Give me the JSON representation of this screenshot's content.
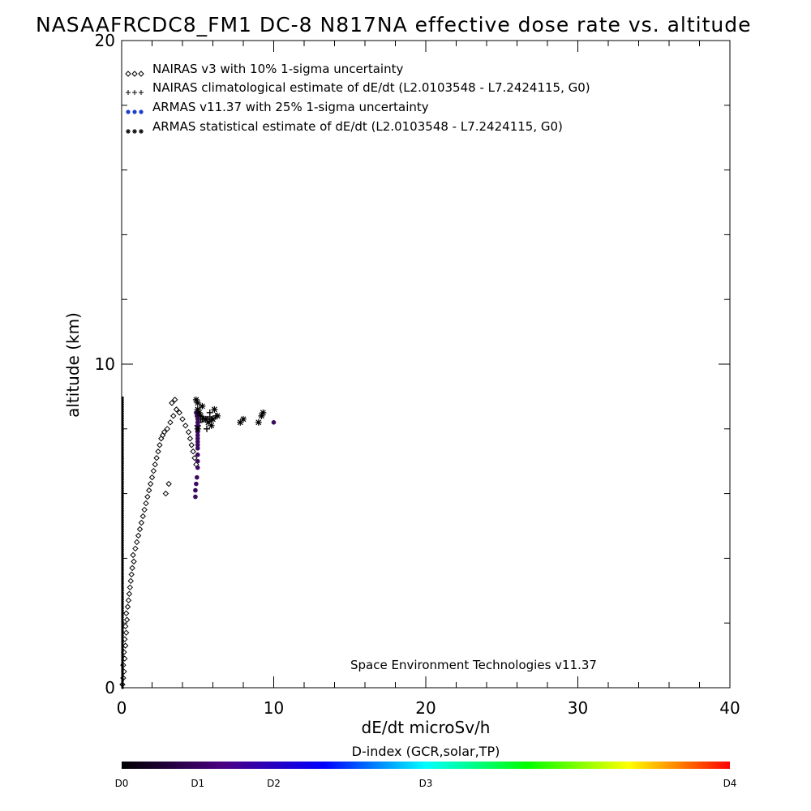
{
  "chart_data": {
    "type": "scatter",
    "title": "NASAAFRCDC8_FM1 DC-8   N817NA effective dose rate vs. altitude",
    "xlabel": "dE/dt microSv/h",
    "ylabel": "altitude (km)",
    "xlim": [
      0,
      40
    ],
    "ylim": [
      0,
      20
    ],
    "x_ticks": [
      "0",
      "10",
      "20",
      "30",
      "40"
    ],
    "y_ticks": [
      "0",
      "10",
      "20"
    ],
    "legend_position": "top-left",
    "legend": [
      {
        "marker": "diamond",
        "label": "NAIRAS v3 with 10% 1-sigma uncertainty"
      },
      {
        "marker": "plus",
        "label": "NAIRAS climatological estimate of dE/dt (L2.0103548 - L7.2424115, G0)"
      },
      {
        "marker": "dot",
        "label": "ARMAS v11.37 with 25% 1-sigma uncertainty"
      },
      {
        "marker": "asterisk",
        "label": "ARMAS statistical estimate of dE/dt (L2.0103548 - L7.2424115, G0)"
      }
    ],
    "annotation": "Space Environment Technologies v11.37",
    "colorbar": {
      "title": "D-index (GCR,solar,TP)",
      "labels": [
        "D0",
        "D1",
        "D2",
        "D3",
        "D4"
      ],
      "colors": [
        "#000000",
        "#4b0082",
        "#0000ff",
        "#00ffff",
        "#00ff00",
        "#ffff00",
        "#ff0000"
      ]
    },
    "series": [
      {
        "name": "NAIRAS v3 with 10% 1-sigma uncertainty",
        "marker": "diamond",
        "color": "#000000",
        "x": [
          0.05,
          0.1,
          0.15,
          0.1,
          0.2,
          0.15,
          0.25,
          0.2,
          0.3,
          0.25,
          0.35,
          0.3,
          0.4,
          0.45,
          0.5,
          0.55,
          0.6,
          0.65,
          0.7,
          0.8,
          0.75,
          0.9,
          1.0,
          1.1,
          1.2,
          1.3,
          1.4,
          1.5,
          1.6,
          1.7,
          1.8,
          1.9,
          2.0,
          2.1,
          2.2,
          2.3,
          2.4,
          2.5,
          2.6,
          2.7,
          2.8,
          3.0,
          3.2,
          3.4,
          3.6,
          3.8,
          4.0,
          4.2,
          4.4,
          4.5,
          4.6,
          4.7,
          4.8,
          4.9,
          3.3,
          3.5,
          3.1,
          2.9
        ],
        "y": [
          0.1,
          0.3,
          0.5,
          0.7,
          0.9,
          1.1,
          1.3,
          1.5,
          1.7,
          1.9,
          2.1,
          2.3,
          2.5,
          2.7,
          2.9,
          3.1,
          3.3,
          3.5,
          3.7,
          3.9,
          4.1,
          4.3,
          4.5,
          4.7,
          4.9,
          5.1,
          5.3,
          5.5,
          5.7,
          5.9,
          6.1,
          6.3,
          6.5,
          6.7,
          6.9,
          7.1,
          7.3,
          7.5,
          7.7,
          7.8,
          7.9,
          8.0,
          8.2,
          8.4,
          8.6,
          8.5,
          8.3,
          8.1,
          7.9,
          7.7,
          7.5,
          7.3,
          7.1,
          6.9,
          8.8,
          8.9,
          6.3,
          6.0
        ]
      },
      {
        "name": "NAIRAS climatological estimate of dE/dt (L2.0103548 - L7.2424115, G0)",
        "marker": "plus",
        "color": "#000000",
        "x": [
          5.0,
          5.1,
          5.2,
          5.3,
          5.4,
          5.5,
          5.6,
          5.7,
          5.8,
          5.9,
          6.0,
          6.2,
          5.6,
          5.8
        ],
        "y": [
          8.1,
          8.2,
          8.3,
          8.3,
          8.3,
          8.3,
          8.3,
          8.3,
          8.3,
          8.3,
          8.3,
          8.4,
          8.0,
          8.5
        ]
      },
      {
        "name": "ARMAS v11.37 with 25% 1-sigma uncertainty",
        "marker": "dot",
        "color": "#3d0a5e",
        "x": [
          4.9,
          4.95,
          5.0,
          5.0,
          5.0,
          5.0,
          5.0,
          5.0,
          5.0,
          5.0,
          5.0,
          5.0,
          5.0,
          5.0,
          5.0,
          4.95,
          4.9,
          4.85,
          4.85,
          10.0
        ],
        "y": [
          8.5,
          8.4,
          8.3,
          8.2,
          8.1,
          8.0,
          7.9,
          7.8,
          7.7,
          7.6,
          7.5,
          7.4,
          7.2,
          7.0,
          6.8,
          6.5,
          6.3,
          6.1,
          5.9,
          8.2
        ]
      },
      {
        "name": "ARMAS statistical estimate of dE/dt (L2.0103548 - L7.2424115, G0)",
        "marker": "asterisk",
        "color": "#000000",
        "x": [
          4.9,
          5.0,
          5.0,
          5.1,
          5.2,
          5.5,
          5.7,
          6.0,
          6.3,
          7.8,
          8.0,
          9.0,
          9.2,
          9.3,
          5.3,
          5.9,
          6.1,
          5.0
        ],
        "y": [
          8.9,
          8.8,
          8.6,
          8.5,
          8.4,
          8.3,
          8.2,
          8.3,
          8.4,
          8.2,
          8.3,
          8.2,
          8.4,
          8.5,
          8.7,
          8.1,
          8.6,
          8.0
        ]
      }
    ]
  }
}
